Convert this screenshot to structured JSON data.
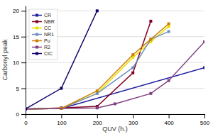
{
  "chart_data": {
    "type": "line",
    "xlabel": "QUV (h.)",
    "ylabel": "Carbonyl peak",
    "xlim": [
      0,
      500
    ],
    "ylim": [
      0,
      21
    ],
    "xticks": [
      0,
      100,
      200,
      300,
      400,
      500
    ],
    "yticks": [
      0,
      5,
      10,
      15,
      20
    ],
    "grid": true,
    "legend": "upper left",
    "series": [
      {
        "name": "CR",
        "color": "#2020a0",
        "marker": "square",
        "x": [
          0,
          100,
          500
        ],
        "values": [
          1,
          1.1,
          9
        ]
      },
      {
        "name": "NBR",
        "color": "#800020",
        "marker": "square",
        "x": [
          0,
          100,
          200,
          300,
          350
        ],
        "values": [
          1,
          1.2,
          1.5,
          8,
          18
        ]
      },
      {
        "name": "CC",
        "color": "#e8e000",
        "marker": "square",
        "x": [
          0,
          100,
          200,
          300,
          350,
          400
        ],
        "values": [
          1,
          1.1,
          4,
          11,
          14,
          17
        ]
      },
      {
        "name": "NR1",
        "color": "#7090c0",
        "marker": "square",
        "x": [
          0,
          100,
          200,
          300,
          350,
          400
        ],
        "values": [
          1,
          1.1,
          4,
          9,
          14.5,
          16
        ]
      },
      {
        "name": "Pu",
        "color": "#d08000",
        "marker": "square",
        "x": [
          0,
          100,
          200,
          300,
          350,
          400
        ],
        "values": [
          1,
          1.1,
          4.5,
          11.5,
          14.5,
          17.5
        ]
      },
      {
        "name": "R2",
        "color": "#804080",
        "marker": "square",
        "x": [
          0,
          200,
          250,
          350,
          400,
          500
        ],
        "values": [
          1,
          1.2,
          2,
          4,
          6.5,
          14
        ]
      },
      {
        "name": "CIC",
        "color": "#10006a",
        "marker": "square",
        "x": [
          0,
          100,
          200
        ],
        "values": [
          1,
          5,
          20
        ]
      }
    ]
  }
}
